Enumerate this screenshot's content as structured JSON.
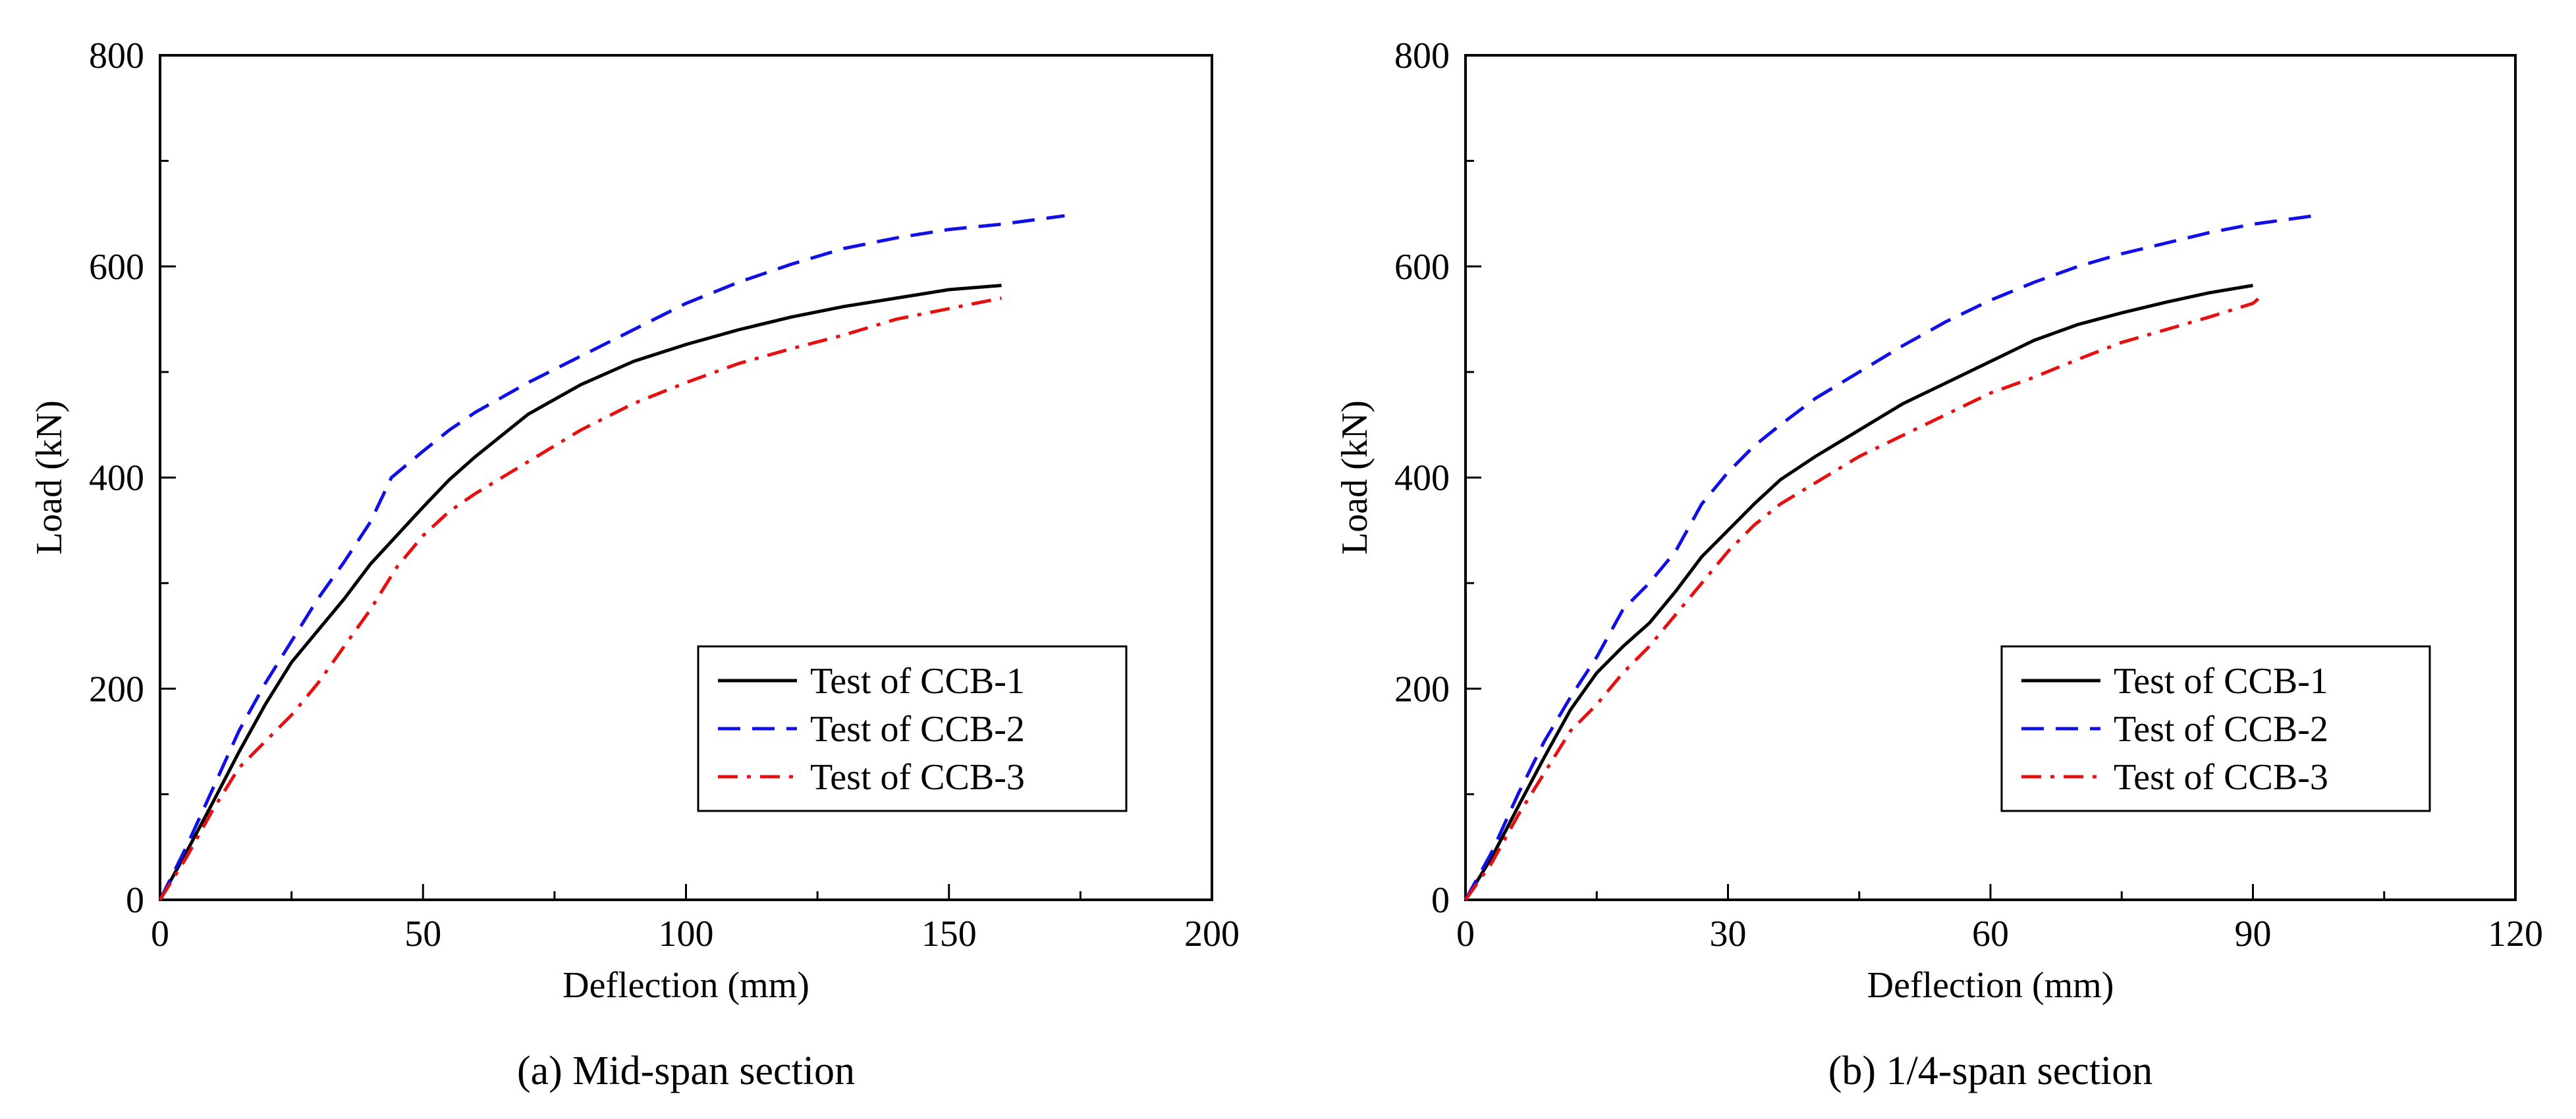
{
  "chart_data": [
    {
      "type": "line",
      "caption": "(a) Mid-span section",
      "xlabel": "Deflection (mm)",
      "ylabel": "Load (kN)",
      "xlim": [
        0,
        200
      ],
      "ylim": [
        0,
        800
      ],
      "xticks": [
        0,
        50,
        100,
        150,
        200
      ],
      "yticks": [
        0,
        200,
        400,
        600,
        800
      ],
      "grid": false,
      "legend_position": "bottom-right",
      "series": [
        {
          "name": "Test of CCB-1",
          "color": "#000000",
          "dash": "solid",
          "points": [
            [
              0,
              0
            ],
            [
              5,
              45
            ],
            [
              10,
              92
            ],
            [
              15,
              140
            ],
            [
              20,
              185
            ],
            [
              25,
              225
            ],
            [
              30,
              255
            ],
            [
              35,
              285
            ],
            [
              40,
              318
            ],
            [
              45,
              345
            ],
            [
              50,
              372
            ],
            [
              55,
              398
            ],
            [
              60,
              420
            ],
            [
              65,
              440
            ],
            [
              70,
              460
            ],
            [
              75,
              474
            ],
            [
              80,
              488
            ],
            [
              90,
              510
            ],
            [
              100,
              526
            ],
            [
              110,
              540
            ],
            [
              120,
              552
            ],
            [
              130,
              562
            ],
            [
              140,
              570
            ],
            [
              150,
              578
            ],
            [
              160,
              582
            ]
          ]
        },
        {
          "name": "Test of CCB-2",
          "color": "#1010e6",
          "dash": "dashed",
          "points": [
            [
              0,
              0
            ],
            [
              5,
              50
            ],
            [
              10,
              105
            ],
            [
              15,
              160
            ],
            [
              20,
              205
            ],
            [
              25,
              245
            ],
            [
              30,
              285
            ],
            [
              35,
              320
            ],
            [
              40,
              358
            ],
            [
              44,
              400
            ],
            [
              50,
              425
            ],
            [
              55,
              445
            ],
            [
              60,
              462
            ],
            [
              70,
              490
            ],
            [
              80,
              515
            ],
            [
              90,
              540
            ],
            [
              100,
              565
            ],
            [
              110,
              585
            ],
            [
              120,
              602
            ],
            [
              130,
              617
            ],
            [
              140,
              627
            ],
            [
              150,
              635
            ],
            [
              160,
              640
            ],
            [
              172,
              648
            ]
          ]
        },
        {
          "name": "Test of CCB-3",
          "color": "#e61010",
          "dash": "dashdot",
          "points": [
            [
              0,
              0
            ],
            [
              5,
              40
            ],
            [
              10,
              85
            ],
            [
              15,
              125
            ],
            [
              20,
              150
            ],
            [
              25,
              175
            ],
            [
              30,
              205
            ],
            [
              35,
              240
            ],
            [
              40,
              275
            ],
            [
              45,
              315
            ],
            [
              50,
              345
            ],
            [
              55,
              368
            ],
            [
              60,
              385
            ],
            [
              70,
              415
            ],
            [
              80,
              445
            ],
            [
              90,
              470
            ],
            [
              100,
              490
            ],
            [
              110,
              508
            ],
            [
              120,
              522
            ],
            [
              130,
              535
            ],
            [
              140,
              550
            ],
            [
              150,
              560
            ],
            [
              160,
              570
            ]
          ]
        }
      ]
    },
    {
      "type": "line",
      "caption": "(b) 1/4-span section",
      "xlabel": "Deflection (mm)",
      "ylabel": "Load (kN)",
      "xlim": [
        0,
        120
      ],
      "ylim": [
        0,
        800
      ],
      "xticks": [
        0,
        30,
        60,
        90,
        120
      ],
      "yticks": [
        0,
        200,
        400,
        600,
        800
      ],
      "grid": false,
      "legend_position": "bottom-right",
      "series": [
        {
          "name": "Test of CCB-1",
          "color": "#000000",
          "dash": "solid",
          "points": [
            [
              0,
              0
            ],
            [
              3,
              40
            ],
            [
              6,
              88
            ],
            [
              9,
              135
            ],
            [
              12,
              180
            ],
            [
              15,
              215
            ],
            [
              18,
              240
            ],
            [
              21,
              262
            ],
            [
              24,
              292
            ],
            [
              27,
              325
            ],
            [
              30,
              350
            ],
            [
              33,
              375
            ],
            [
              36,
              398
            ],
            [
              40,
              420
            ],
            [
              45,
              445
            ],
            [
              50,
              470
            ],
            [
              55,
              490
            ],
            [
              60,
              510
            ],
            [
              65,
              530
            ],
            [
              70,
              545
            ],
            [
              75,
              556
            ],
            [
              80,
              566
            ],
            [
              85,
              575
            ],
            [
              90,
              582
            ]
          ]
        },
        {
          "name": "Test of CCB-2",
          "color": "#1010e6",
          "dash": "dashed",
          "points": [
            [
              0,
              0
            ],
            [
              3,
              45
            ],
            [
              6,
              100
            ],
            [
              9,
              150
            ],
            [
              12,
              192
            ],
            [
              15,
              230
            ],
            [
              18,
              275
            ],
            [
              21,
              300
            ],
            [
              24,
              330
            ],
            [
              27,
              375
            ],
            [
              30,
              405
            ],
            [
              33,
              430
            ],
            [
              36,
              450
            ],
            [
              40,
              475
            ],
            [
              45,
              500
            ],
            [
              50,
              525
            ],
            [
              55,
              548
            ],
            [
              60,
              568
            ],
            [
              65,
              585
            ],
            [
              70,
              600
            ],
            [
              75,
              612
            ],
            [
              80,
              622
            ],
            [
              85,
              632
            ],
            [
              90,
              640
            ],
            [
              97,
              648
            ]
          ]
        },
        {
          "name": "Test of CCB-3",
          "color": "#e61010",
          "dash": "dashdot",
          "points": [
            [
              0,
              0
            ],
            [
              3,
              35
            ],
            [
              6,
              80
            ],
            [
              9,
              120
            ],
            [
              12,
              160
            ],
            [
              15,
              185
            ],
            [
              18,
              215
            ],
            [
              21,
              240
            ],
            [
              24,
              270
            ],
            [
              27,
              300
            ],
            [
              30,
              330
            ],
            [
              33,
              355
            ],
            [
              36,
              375
            ],
            [
              40,
              395
            ],
            [
              45,
              420
            ],
            [
              50,
              440
            ],
            [
              55,
              460
            ],
            [
              60,
              480
            ],
            [
              65,
              495
            ],
            [
              70,
              512
            ],
            [
              75,
              528
            ],
            [
              80,
              540
            ],
            [
              85,
              552
            ],
            [
              90,
              565
            ],
            [
              91,
              572
            ]
          ]
        }
      ]
    }
  ]
}
